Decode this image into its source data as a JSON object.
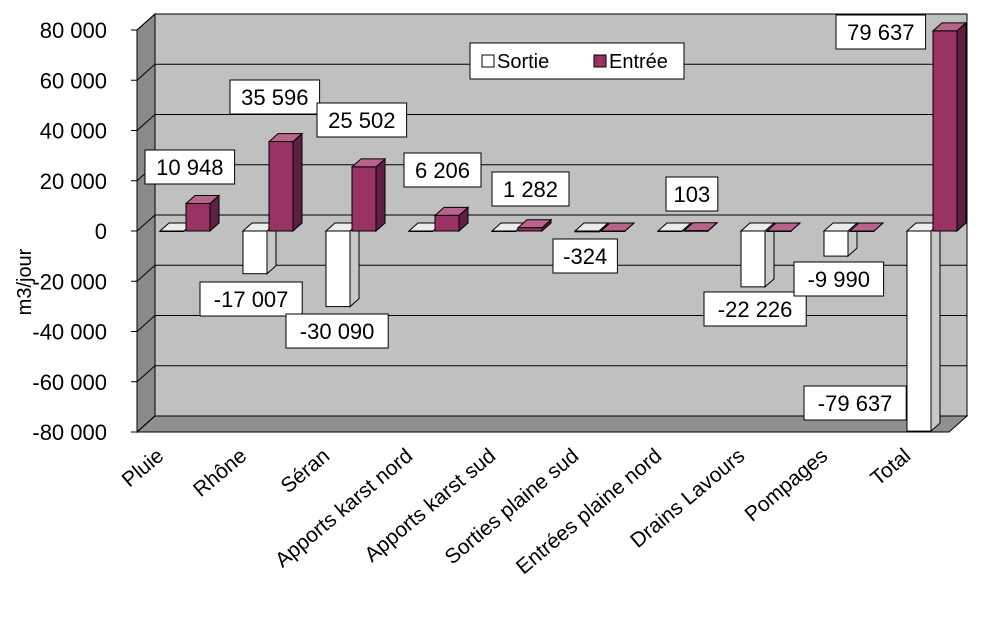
{
  "chart_data": {
    "type": "bar",
    "ylabel": "m3/jour",
    "ylim": [
      -80000,
      80000
    ],
    "yticks": [
      80000,
      60000,
      40000,
      20000,
      0,
      -20000,
      -40000,
      -60000,
      -80000
    ],
    "ytick_labels": [
      "80 000",
      "60 000",
      "40 000",
      "20 000",
      "0",
      "-20 000",
      "-40 000",
      "-60 000",
      "-80 000"
    ],
    "grid": true,
    "legend_position": "top-center",
    "categories": [
      "Pluie",
      "Rhône",
      "Séran",
      "Apports karst nord",
      "Apports karst sud",
      "Sorties plaine sud",
      "Entrées plaine nord",
      "Drains Lavours",
      "Pompages",
      "Total"
    ],
    "series": [
      {
        "name": "Sortie",
        "color": "#ffffff",
        "values": [
          0,
          -17007,
          -30090,
          0,
          0,
          -324,
          0,
          -22226,
          -9990,
          -79637
        ],
        "labels": [
          "",
          "-17 007",
          "-30 090",
          "",
          "",
          "-324",
          "",
          "-22 226",
          "-9 990",
          "-79 637"
        ]
      },
      {
        "name": "Entrée",
        "color": "#993366",
        "values": [
          10948,
          35596,
          25502,
          6206,
          1282,
          0,
          103,
          0,
          0,
          79637
        ],
        "labels": [
          "10 948",
          "35 596",
          "25 502",
          "6 206",
          "1 282",
          "",
          "103",
          "",
          "",
          "79 637"
        ]
      }
    ],
    "colors": {
      "plot_back": "#c0c0c0",
      "plot_side": "#8a8a8a",
      "plot_floor": "#909090",
      "entree_front": "#993366",
      "entree_side": "#5e1f40",
      "entree_top": "#b8648c",
      "sortie_front": "#ffffff",
      "sortie_side": "#c8c8c8",
      "sortie_top": "#ececec"
    }
  }
}
